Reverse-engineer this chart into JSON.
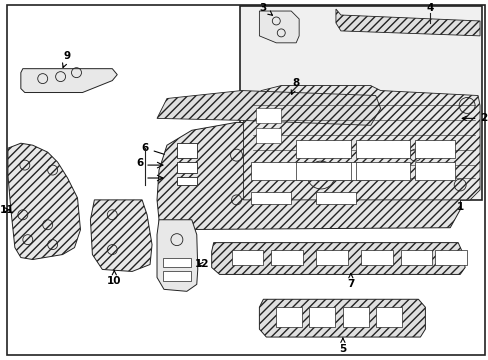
{
  "background_color": "#ffffff",
  "line_color": "#222222",
  "fig_width": 4.89,
  "fig_height": 3.6,
  "dpi": 100,
  "hatch_color": "#555555",
  "border_gray": "#cccccc"
}
